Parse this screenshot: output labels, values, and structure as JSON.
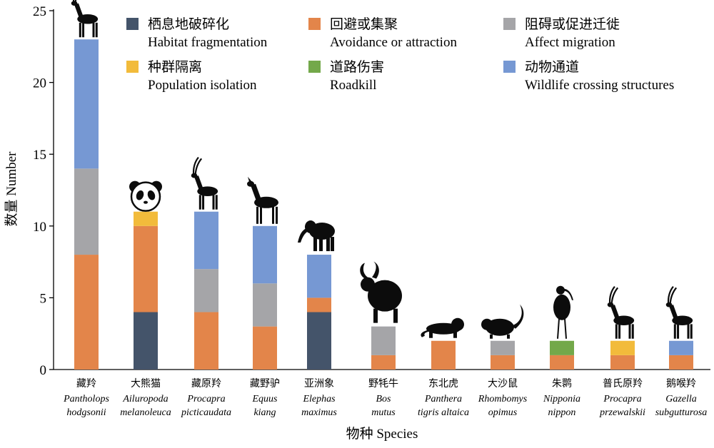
{
  "chart_data": {
    "type": "bar",
    "stacked": true,
    "xlabel": "物种 Species",
    "ylabel": "数量 Number",
    "ylim": [
      0,
      25
    ],
    "yticks": [
      0,
      5,
      10,
      15,
      20,
      25
    ],
    "grid": false,
    "legend_position": "top-right",
    "categories": [
      {
        "cn": "藏羚",
        "latin": [
          "Pantholops",
          "hodgsonii"
        ],
        "icon": "tibetan-antelope-icon"
      },
      {
        "cn": "大熊猫",
        "latin": [
          "Ailuropoda",
          "melanoleuca"
        ],
        "icon": "giant-panda-icon"
      },
      {
        "cn": "藏原羚",
        "latin": [
          "Procapra",
          "picticaudata"
        ],
        "icon": "tibetan-gazelle-icon"
      },
      {
        "cn": "藏野驴",
        "latin": [
          "Equus",
          "kiang"
        ],
        "icon": "kiang-icon"
      },
      {
        "cn": "亚洲象",
        "latin": [
          "Elephas",
          "maximus"
        ],
        "icon": "asian-elephant-icon"
      },
      {
        "cn": "野牦牛",
        "latin": [
          "Bos",
          "mutus"
        ],
        "icon": "wild-yak-icon"
      },
      {
        "cn": "东北虎",
        "latin": [
          "Panthera",
          "tigris altaica"
        ],
        "icon": "siberian-tiger-icon"
      },
      {
        "cn": "大沙鼠",
        "latin": [
          "Rhombomys",
          "opimus"
        ],
        "icon": "great-gerbil-icon"
      },
      {
        "cn": "朱鹮",
        "latin": [
          "Nipponia",
          "nippon"
        ],
        "icon": "crested-ibis-icon"
      },
      {
        "cn": "普氏原羚",
        "latin": [
          "Procapra",
          "przewalskii"
        ],
        "icon": "przewalski-gazelle-icon"
      },
      {
        "cn": "鹅喉羚",
        "latin": [
          "Gazella",
          "subgutturosa"
        ],
        "icon": "goitered-gazelle-icon"
      }
    ],
    "series": [
      {
        "key": "fragmentation",
        "name_cn": "栖息地破碎化",
        "name_en": "Habitat fragmentation",
        "color": "#44546a",
        "values": [
          0,
          4,
          0,
          0,
          4,
          0,
          0,
          0,
          0,
          0,
          0
        ]
      },
      {
        "key": "avoidance",
        "name_cn": "回避或集聚",
        "name_en": "Avoidance or attraction",
        "color": "#e3854a",
        "values": [
          8,
          6,
          4,
          3,
          1,
          1,
          2,
          1,
          1,
          1,
          1
        ]
      },
      {
        "key": "migration",
        "name_cn": "阻碍或促进迁徙",
        "name_en": "Affect migration",
        "color": "#a5a5a8",
        "values": [
          6,
          0,
          3,
          3,
          0,
          2,
          0,
          1,
          0,
          0,
          0
        ]
      },
      {
        "key": "isolation",
        "name_cn": "种群隔离",
        "name_en": "Population isolation",
        "color": "#f2bb3b",
        "values": [
          0,
          1,
          0,
          0,
          0,
          0,
          0,
          0,
          0,
          1,
          0
        ]
      },
      {
        "key": "roadkill",
        "name_cn": "道路伤害",
        "name_en": "Roadkill",
        "color": "#73a84a",
        "values": [
          0,
          0,
          0,
          0,
          0,
          0,
          0,
          0,
          1,
          0,
          0
        ]
      },
      {
        "key": "crossing",
        "name_cn": "动物通道",
        "name_en": "Wildlife crossing structures",
        "color": "#7698d3",
        "values": [
          9,
          0,
          4,
          4,
          3,
          0,
          0,
          0,
          0,
          0,
          1
        ]
      }
    ]
  }
}
